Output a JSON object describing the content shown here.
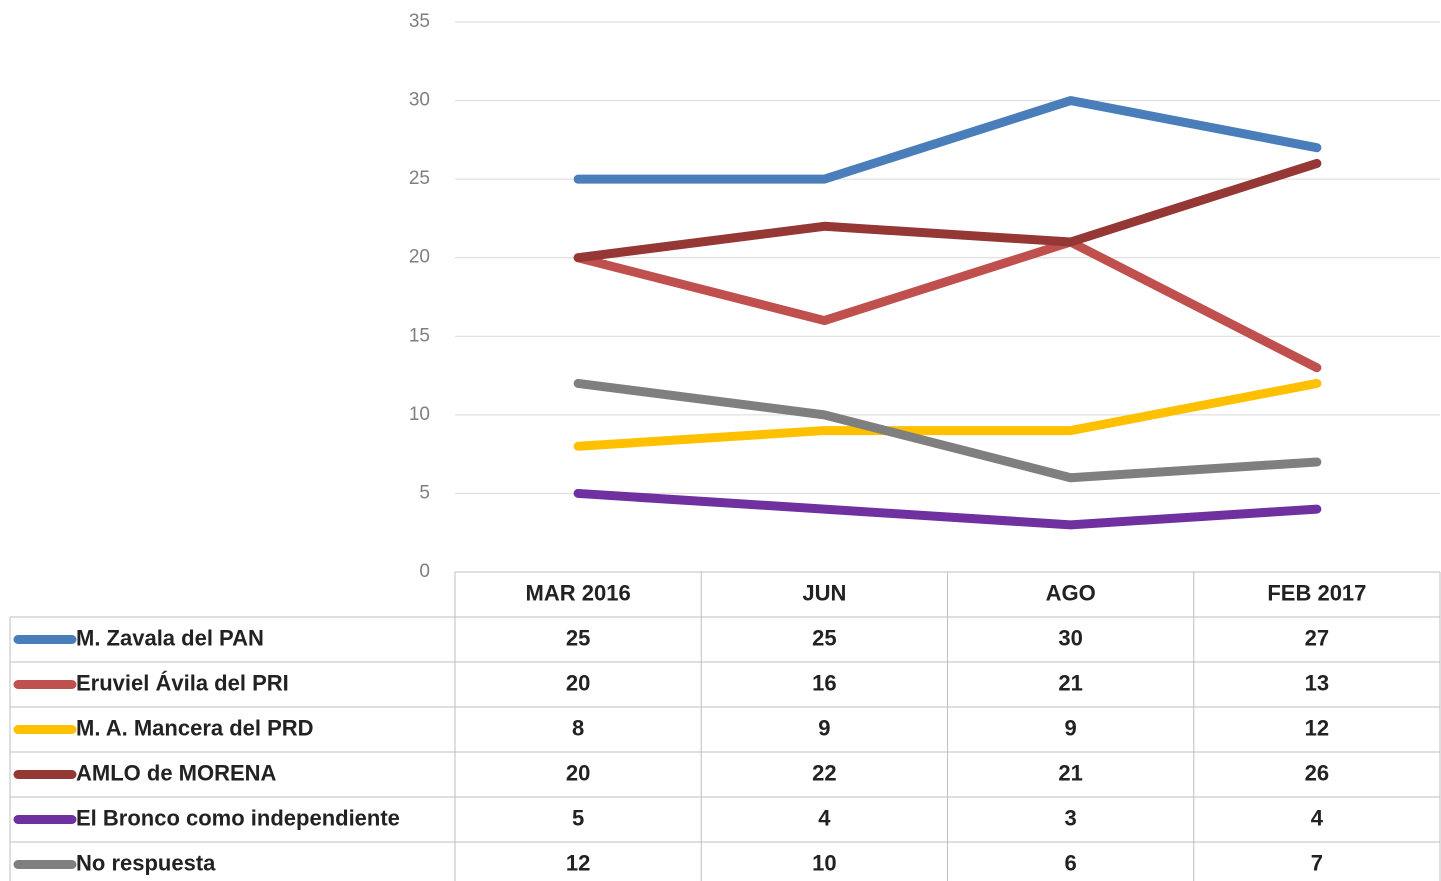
{
  "chart_data": {
    "type": "line",
    "categories": [
      "MAR 2016",
      "JUN",
      "AGO",
      "FEB 2017"
    ],
    "series": [
      {
        "name": "M. Zavala del PAN",
        "color": "#4a7ebb",
        "values": [
          25,
          25,
          30,
          27
        ]
      },
      {
        "name": "Eruviel Ávila del PRI",
        "color": "#c0504d",
        "values": [
          20,
          16,
          21,
          13
        ]
      },
      {
        "name": "M. A. Mancera del PRD",
        "color": "#ffc000",
        "values": [
          8,
          9,
          9,
          12
        ]
      },
      {
        "name": "AMLO de MORENA",
        "color": "#953735",
        "values": [
          20,
          22,
          21,
          26
        ]
      },
      {
        "name": "El Bronco como independiente",
        "color": "#7030a0",
        "values": [
          5,
          4,
          3,
          4
        ]
      },
      {
        "name": "No respuesta",
        "color": "#7f7f7f",
        "values": [
          12,
          10,
          6,
          7
        ]
      }
    ],
    "ylim": [
      0,
      35
    ],
    "yticks": [
      0,
      5,
      10,
      15,
      20,
      25,
      30,
      35
    ],
    "grid": true,
    "legend": "table"
  }
}
